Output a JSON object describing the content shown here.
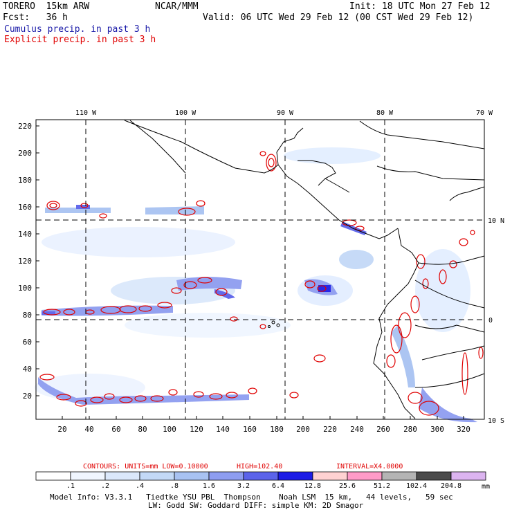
{
  "header": {
    "model": "TORERO  15km ARW",
    "org": "NCAR/MMM",
    "init": "Init: 18 UTC Mon 27 Feb 12",
    "fcst": "Fcst:   36 h",
    "valid": "Valid: 06 UTC Wed 29 Feb 12 (00 CST Wed 29 Feb 12)",
    "legend_cumulus": "Cumulus precip. in past 3 h",
    "legend_explicit": "Explicit precip. in past 3 h"
  },
  "map": {
    "lon_labels": [
      "110 W",
      "100 W",
      "90 W",
      "80 W",
      "70 W"
    ],
    "lat_labels": [
      "10 N",
      "0",
      "10 S"
    ],
    "y_ticks": [
      "220",
      "200",
      "180",
      "160",
      "140",
      "120",
      "100",
      "80",
      "60",
      "40",
      "20"
    ],
    "x_ticks": [
      "20",
      "40",
      "60",
      "80",
      "100",
      "120",
      "140",
      "160",
      "180",
      "200",
      "220",
      "240",
      "260",
      "280",
      "300",
      "320"
    ]
  },
  "contours_line": {
    "prefix": "CONTOURS:  UNITS=mm  LOW=",
    "low": "0.10000",
    "high_label": "HIGH=",
    "high": "102.40",
    "interval_label": "INTERVAL=X",
    "interval": "4.0000"
  },
  "colorbar": {
    "labels": [
      ".1",
      ".2",
      ".4",
      ".8",
      "1.6",
      "3.2",
      "6.4",
      "12.8",
      "25.6",
      "51.2",
      "102.4",
      "204.8"
    ],
    "unit": "mm",
    "colors": [
      "#ffffff",
      "#f0f6ff",
      "#dbe8fb",
      "#c3d9f7",
      "#a8c2f2",
      "#8e9df0",
      "#5b63ea",
      "#1c1ce6",
      "#ffd2d2",
      "#ff9bc8",
      "#b4b4b4",
      "#4a4a4a",
      "#dcb4f0"
    ]
  },
  "footer": {
    "line1": "Model Info: V3.3.1   Tiedtke YSU PBL  Thompson    Noah LSM  15 km,   44 levels,   59 sec",
    "line2": "LW: Godd SW: Goddard DIFF: simple KM: 2D Smagor"
  }
}
